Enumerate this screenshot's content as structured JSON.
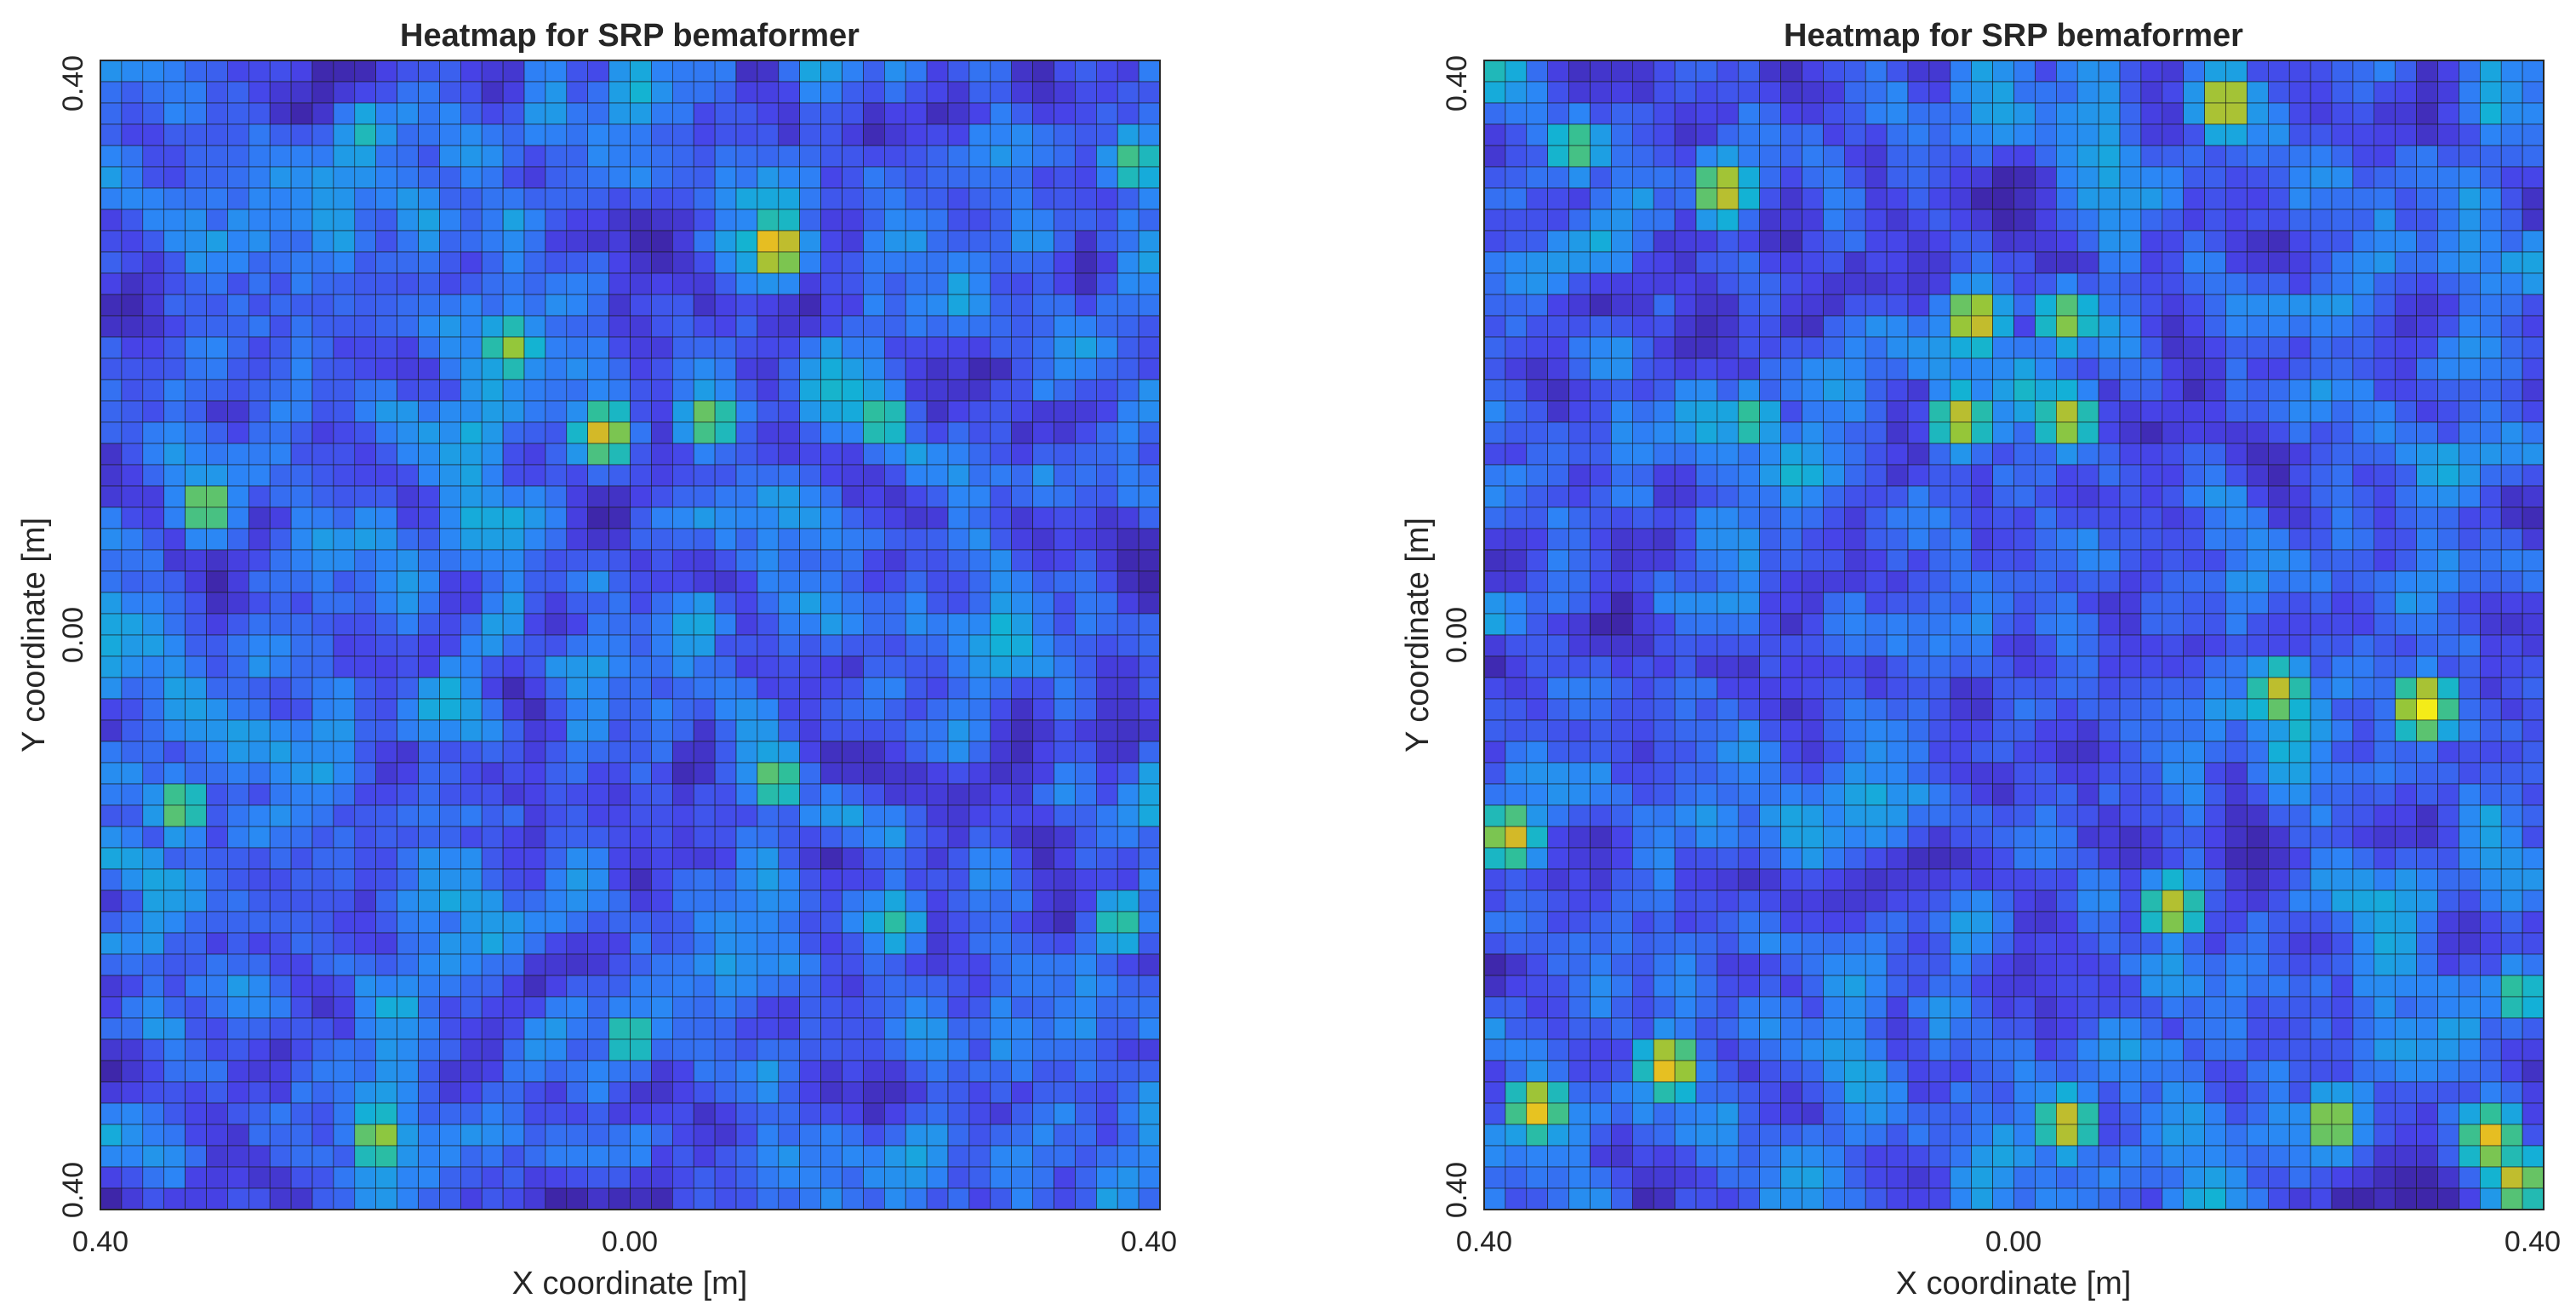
{
  "chart_data": [
    {
      "type": "heatmap",
      "title": "Heatmap for SRP bemaformer",
      "xlabel": "X coordinate [m]",
      "ylabel": "Y coordinate [m]",
      "x_tick_labels": [
        "0.40",
        "0.00",
        "0.40"
      ],
      "y_tick_labels": [
        "0.40",
        "0.00",
        "0.40"
      ],
      "xlim": [
        -0.4,
        0.4
      ],
      "ylim": [
        -0.4,
        0.4
      ],
      "grid_size": [
        50,
        54
      ],
      "colormap": "parula",
      "colormap_colors": [
        "#3e26a8",
        "#4743e8",
        "#2c85f6",
        "#12b2d5",
        "#2fbf9a",
        "#93c73a",
        "#e3b524",
        "#f9fb15"
      ],
      "hotspots": [
        {
          "x": 0.11,
          "y": 0.27,
          "level": 0.95
        },
        {
          "x": -0.02,
          "y": 0.14,
          "level": 0.85
        },
        {
          "x": 0.06,
          "y": 0.15,
          "level": 0.7
        },
        {
          "x": -0.32,
          "y": 0.09,
          "level": 0.75
        },
        {
          "x": -0.19,
          "y": -0.35,
          "level": 0.75
        },
        {
          "x": -0.34,
          "y": -0.12,
          "level": 0.68
        },
        {
          "x": 0.11,
          "y": -0.1,
          "level": 0.68
        },
        {
          "x": -0.09,
          "y": 0.2,
          "level": 0.72
        },
        {
          "x": 0.19,
          "y": 0.15,
          "level": 0.62
        },
        {
          "x": 0.38,
          "y": 0.33,
          "level": 0.62
        },
        {
          "x": 0.37,
          "y": -0.2,
          "level": 0.58
        },
        {
          "x": 0.0,
          "y": -0.28,
          "level": 0.6
        },
        {
          "x": 0.2,
          "y": -0.2,
          "level": 0.55
        },
        {
          "x": -0.2,
          "y": 0.35,
          "level": 0.5
        }
      ]
    },
    {
      "type": "heatmap",
      "title": "Heatmap for SRP bemaformer",
      "xlabel": "X coordinate [m]",
      "ylabel": "Y coordinate [m]",
      "x_tick_labels": [
        "0.40",
        "0.00",
        "0.40"
      ],
      "y_tick_labels": [
        "0.40",
        "0.00",
        "0.40"
      ],
      "xlim": [
        -0.4,
        0.4
      ],
      "ylim": [
        -0.4,
        0.4
      ],
      "grid_size": [
        50,
        54
      ],
      "colormap": "parula",
      "colormap_colors": [
        "#3e26a8",
        "#4743e8",
        "#2c85f6",
        "#12b2d5",
        "#2fbf9a",
        "#93c73a",
        "#e3b524",
        "#f9fb15"
      ],
      "hotspots": [
        {
          "x": 0.16,
          "y": 0.37,
          "level": 0.9
        },
        {
          "x": -0.22,
          "y": 0.31,
          "level": 0.85
        },
        {
          "x": -0.03,
          "y": 0.22,
          "level": 0.88
        },
        {
          "x": -0.04,
          "y": 0.15,
          "level": 0.82
        },
        {
          "x": 0.04,
          "y": 0.15,
          "level": 0.8
        },
        {
          "x": 0.04,
          "y": 0.22,
          "level": 0.72
        },
        {
          "x": 0.31,
          "y": -0.05,
          "level": 0.98
        },
        {
          "x": 0.2,
          "y": -0.04,
          "level": 0.8
        },
        {
          "x": -0.38,
          "y": -0.14,
          "level": 0.85
        },
        {
          "x": -0.36,
          "y": -0.33,
          "level": 0.9
        },
        {
          "x": -0.26,
          "y": -0.3,
          "level": 0.92
        },
        {
          "x": 0.04,
          "y": -0.34,
          "level": 0.85
        },
        {
          "x": 0.36,
          "y": -0.35,
          "level": 0.88
        },
        {
          "x": 0.38,
          "y": -0.38,
          "level": 0.82
        },
        {
          "x": 0.24,
          "y": -0.34,
          "level": 0.8
        },
        {
          "x": 0.12,
          "y": -0.19,
          "level": 0.8
        },
        {
          "x": -0.33,
          "y": 0.34,
          "level": 0.65
        },
        {
          "x": -0.2,
          "y": 0.15,
          "level": 0.6
        },
        {
          "x": 0.38,
          "y": -0.25,
          "level": 0.6
        }
      ]
    }
  ]
}
